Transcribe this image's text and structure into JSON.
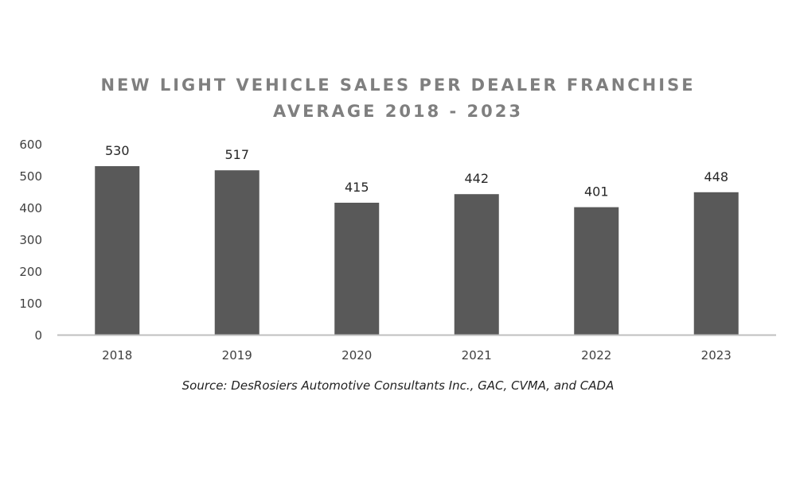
{
  "chart_data": {
    "type": "bar",
    "title_lines": [
      "NEW LIGHT VEHICLE SALES PER DEALER FRANCHISE",
      "AVERAGE 2018 - 2023"
    ],
    "categories": [
      "2018",
      "2019",
      "2020",
      "2021",
      "2022",
      "2023"
    ],
    "values": [
      530,
      517,
      415,
      442,
      401,
      448
    ],
    "ylim": [
      0,
      600
    ],
    "yticks": [
      0,
      100,
      200,
      300,
      400,
      500,
      600
    ],
    "xlabel": "",
    "ylabel": "",
    "grid": false,
    "legend": "none",
    "bar_color": "#595959",
    "axis_color": "#bfbfbf"
  },
  "source_note": "Source: DesRosiers Automotive Consultants Inc., GAC, CVMA, and CADA"
}
